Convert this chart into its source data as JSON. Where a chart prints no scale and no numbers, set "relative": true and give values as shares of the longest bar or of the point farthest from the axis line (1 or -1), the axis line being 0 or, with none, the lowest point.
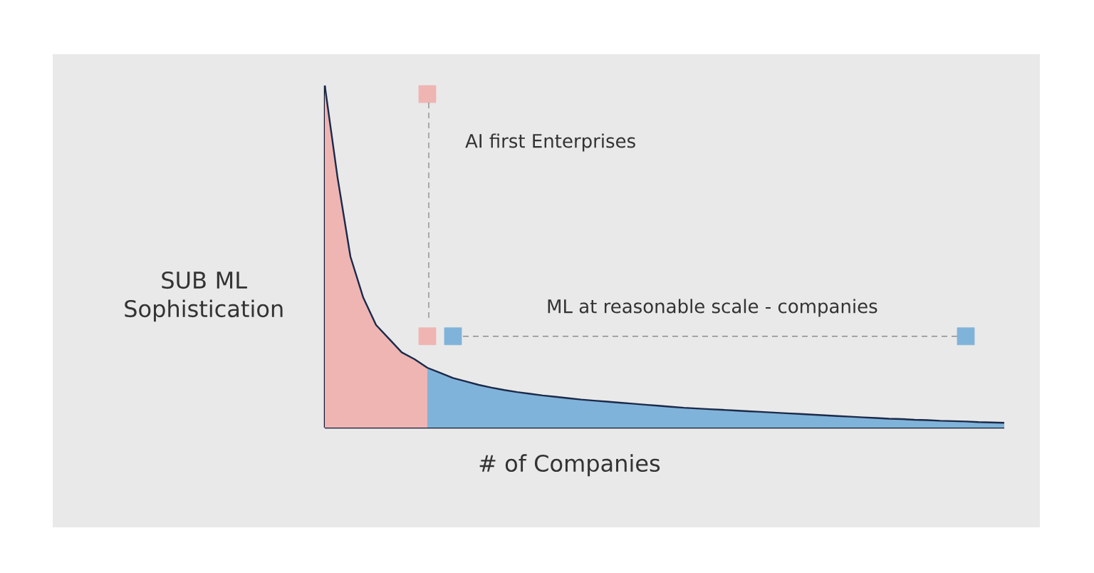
{
  "chart_data": {
    "type": "area",
    "relative": true,
    "xlabel": "# of Companies",
    "ylabel": "SUB ML Sophistication",
    "annotations": [
      "AI first Enterprises",
      "ML at reasonable scale - companies"
    ],
    "categories": [
      null,
      null,
      null,
      null,
      null,
      null,
      null,
      null,
      null,
      null,
      null,
      null,
      null,
      null,
      null,
      null,
      null,
      null,
      null,
      null,
      null,
      null,
      null,
      null,
      null,
      null,
      null,
      null,
      null,
      null,
      null,
      null,
      null,
      null,
      null,
      null,
      null,
      null,
      null,
      null,
      null,
      null,
      null,
      null,
      null,
      null,
      null,
      null,
      null,
      null,
      null,
      null,
      null,
      null
    ],
    "series": [
      {
        "color": "#efb5b3",
        "values": [
          1.0,
          0.73,
          0.5,
          0.38,
          0.3,
          0.26,
          0.22,
          0.2,
          0.175,
          null,
          null,
          null,
          null,
          null,
          null,
          null,
          null,
          null,
          null,
          null,
          null,
          null,
          null,
          null,
          null,
          null,
          null,
          null,
          null,
          null,
          null,
          null,
          null,
          null,
          null,
          null,
          null,
          null,
          null,
          null,
          null,
          null,
          null,
          null,
          null,
          null,
          null,
          null,
          null,
          null,
          null,
          null,
          null,
          null
        ]
      },
      {
        "color": "#80b3d9",
        "values": [
          null,
          null,
          null,
          null,
          null,
          null,
          null,
          null,
          0.175,
          0.16,
          0.145,
          0.135,
          0.125,
          0.117,
          0.11,
          0.104,
          0.099,
          0.094,
          0.09,
          0.086,
          0.082,
          0.079,
          0.076,
          0.073,
          0.07,
          0.067,
          0.064,
          0.061,
          0.058,
          0.056,
          0.054,
          0.052,
          0.05,
          0.048,
          0.046,
          0.044,
          0.042,
          0.04,
          0.038,
          0.036,
          0.034,
          0.032,
          0.03,
          0.028,
          0.026,
          0.025,
          0.023,
          0.022,
          0.02,
          0.019,
          0.018,
          0.016,
          0.015,
          0.014
        ]
      },
      {
        "type": "line",
        "color": "#efb5b3",
        "marker": "square",
        "values": [
          null,
          null,
          null,
          null,
          null,
          null,
          null,
          null,
          0.267,
          null,
          null,
          null,
          null,
          null,
          null,
          null,
          null,
          null,
          null,
          null,
          null,
          null,
          null,
          null,
          null,
          null,
          null,
          null,
          null,
          null,
          null,
          null,
          null,
          null,
          null,
          null,
          null,
          null,
          null,
          null,
          null,
          null,
          null,
          null,
          null,
          null,
          null,
          null,
          null,
          null,
          null,
          null,
          null,
          null
        ]
      },
      {
        "type": "line",
        "color": "#efb5b3",
        "marker": "square",
        "values": [
          null,
          null,
          null,
          null,
          null,
          null,
          null,
          null,
          0.975,
          null,
          null,
          null,
          null,
          null,
          null,
          null,
          null,
          null,
          null,
          null,
          null,
          null,
          null,
          null,
          null,
          null,
          null,
          null,
          null,
          null,
          null,
          null,
          null,
          null,
          null,
          null,
          null,
          null,
          null,
          null,
          null,
          null,
          null,
          null,
          null,
          null,
          null,
          null,
          null,
          null,
          null,
          null,
          null,
          null
        ]
      },
      {
        "type": "line",
        "color": "#9a9a9a",
        "line_style": "dashed",
        "values": [
          null,
          null,
          null,
          null,
          null,
          null,
          null,
          null,
          null,
          null,
          0.267,
          null,
          null,
          null,
          null,
          null,
          null,
          null,
          null,
          null,
          null,
          null,
          null,
          null,
          null,
          null,
          null,
          null,
          null,
          null,
          null,
          null,
          null,
          null,
          null,
          null,
          null,
          null,
          null,
          null,
          null,
          null,
          null,
          null,
          null,
          null,
          null,
          null,
          null,
          null,
          0.267,
          null,
          null,
          null
        ]
      },
      {
        "type": "line",
        "color": "#80b3d9",
        "marker": "square",
        "values": [
          null,
          null,
          null,
          null,
          null,
          null,
          null,
          null,
          null,
          null,
          0.267,
          null,
          null,
          null,
          null,
          null,
          null,
          null,
          null,
          null,
          null,
          null,
          null,
          null,
          null,
          null,
          null,
          null,
          null,
          null,
          null,
          null,
          null,
          null,
          null,
          null,
          null,
          null,
          null,
          null,
          null,
          null,
          null,
          null,
          null,
          null,
          null,
          null,
          null,
          null,
          null,
          null,
          null,
          null
        ]
      },
      {
        "type": "line",
        "color": "#80b3d9",
        "marker": "square",
        "values": [
          null,
          null,
          null,
          null,
          null,
          null,
          null,
          null,
          null,
          null,
          null,
          null,
          null,
          null,
          null,
          null,
          null,
          null,
          null,
          null,
          null,
          null,
          null,
          null,
          null,
          null,
          null,
          null,
          null,
          null,
          null,
          null,
          null,
          null,
          null,
          null,
          null,
          null,
          null,
          null,
          null,
          null,
          null,
          null,
          null,
          null,
          null,
          null,
          null,
          null,
          0.267,
          null,
          null,
          null
        ]
      },
      {
        "type": "line",
        "color": "#1b2a4a",
        "values": [
          1.0,
          0.73,
          0.5,
          0.38,
          0.3,
          0.26,
          0.22,
          0.2,
          0.175,
          0.16,
          0.145,
          0.135,
          0.125,
          0.117,
          0.11,
          0.104,
          0.099,
          0.094,
          0.09,
          0.086,
          0.082,
          0.079,
          0.076,
          0.073,
          0.07,
          0.067,
          0.064,
          0.061,
          0.058,
          0.056,
          0.054,
          0.052,
          0.05,
          0.048,
          0.046,
          0.044,
          0.042,
          0.04,
          0.038,
          0.036,
          0.034,
          0.032,
          0.03,
          0.028,
          0.026,
          0.025,
          0.023,
          0.022,
          0.02,
          0.019,
          0.018,
          0.016,
          0.015,
          0.014
        ]
      }
    ]
  }
}
